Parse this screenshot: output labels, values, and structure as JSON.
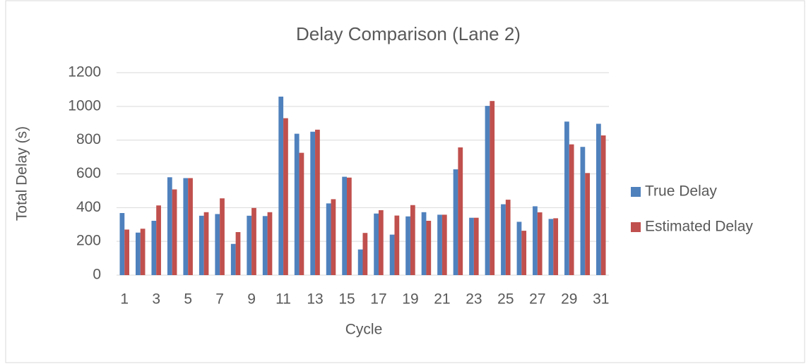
{
  "chart_data": {
    "type": "bar",
    "title": "Delay Comparison (Lane 2)",
    "x_label": "Cycle",
    "y_label": "Total Delay (s)",
    "categories": [
      1,
      null,
      3,
      null,
      5,
      null,
      7,
      null,
      9,
      null,
      11,
      null,
      13,
      null,
      15,
      null,
      17,
      null,
      19,
      null,
      21,
      null,
      23,
      null,
      25,
      null,
      27,
      null,
      29,
      null,
      31
    ],
    "series": [
      {
        "name": "True Delay",
        "color": "#4f81bd",
        "values": [
          368,
          252,
          322,
          580,
          575,
          352,
          362,
          185,
          352,
          350,
          1058,
          838,
          850,
          425,
          583,
          152,
          365,
          240,
          348,
          373,
          358,
          627,
          340,
          1003,
          420,
          316,
          408,
          333,
          910,
          760,
          897
        ]
      },
      {
        "name": "Estimated Delay",
        "color": "#c0504d",
        "values": [
          270,
          275,
          413,
          508,
          575,
          373,
          455,
          255,
          398,
          373,
          930,
          725,
          862,
          450,
          578,
          250,
          385,
          353,
          415,
          322,
          358,
          757,
          340,
          1032,
          447,
          263,
          372,
          337,
          775,
          605,
          828
        ]
      }
    ],
    "ylim": [
      0,
      1200
    ],
    "yticks": [
      0,
      200,
      400,
      600,
      800,
      1000,
      1200
    ],
    "grid": true,
    "legend": "right"
  }
}
